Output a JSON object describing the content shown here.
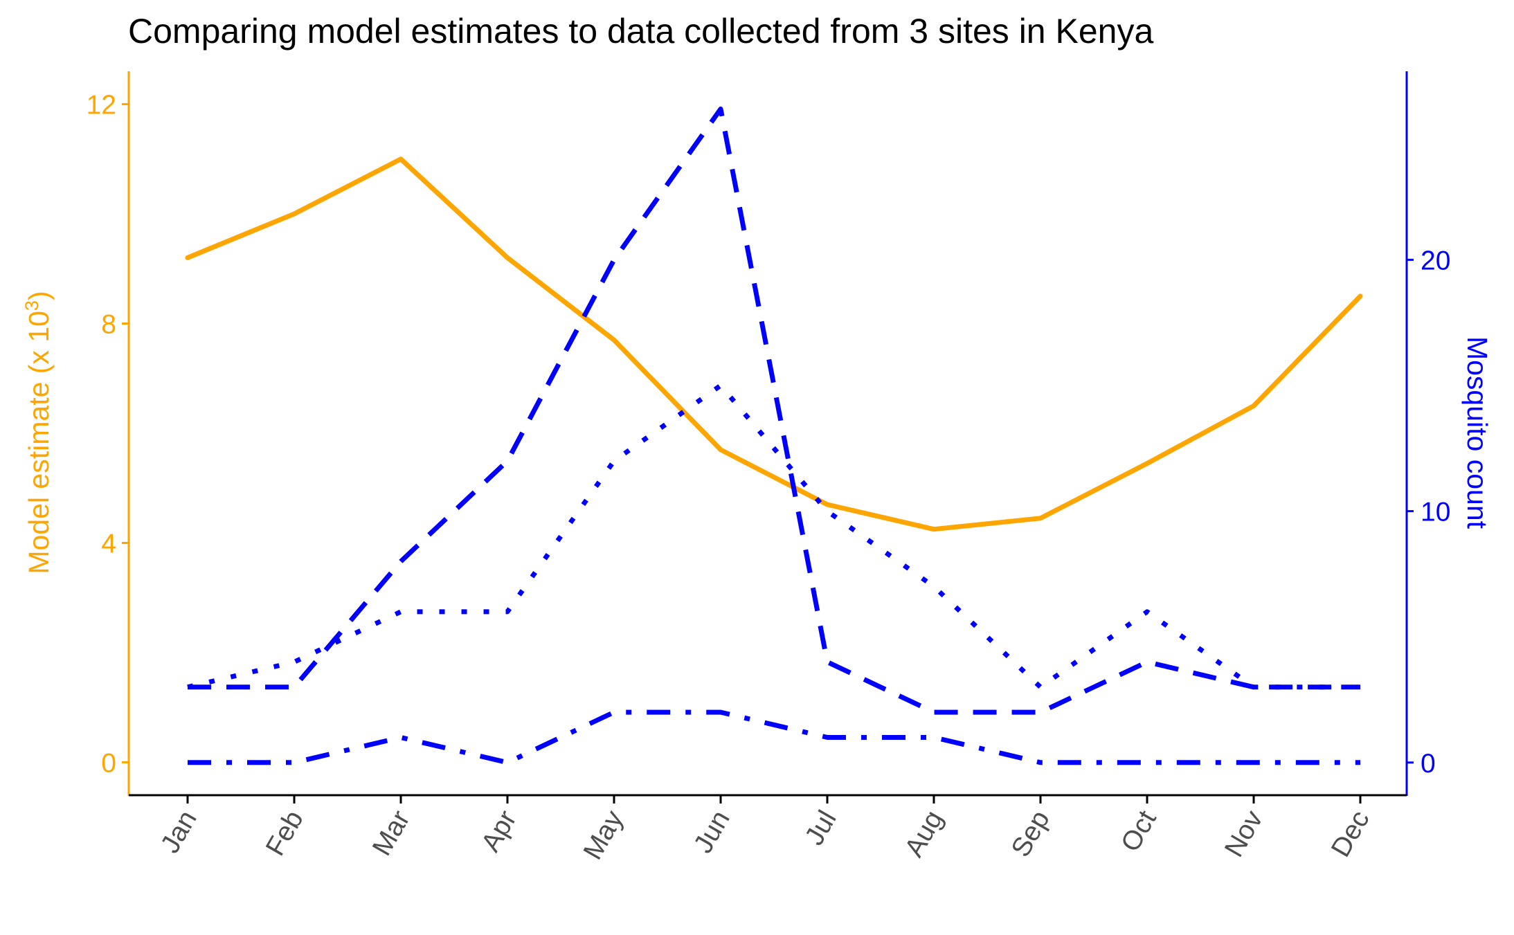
{
  "chart_data": {
    "type": "line",
    "title": "Comparing model estimates to data collected from 3 sites in Kenya",
    "categories": [
      "Jan",
      "Feb",
      "Mar",
      "Apr",
      "May",
      "Jun",
      "Jul",
      "Aug",
      "Sep",
      "Oct",
      "Nov",
      "Dec"
    ],
    "left_axis": {
      "label_main": "Model estimate (x 10",
      "label_sup": "3",
      "label_close": ")",
      "ylim": [
        -0.6,
        12.6
      ],
      "ticks": [
        0,
        4,
        8,
        12
      ],
      "tick_labels": [
        "0",
        "4",
        "8",
        "12"
      ],
      "color": "#FFA500"
    },
    "right_axis": {
      "label": "Mosquito count",
      "ylim": [
        -1.3,
        27.5
      ],
      "ticks": [
        0,
        10,
        20
      ],
      "tick_labels": [
        "0",
        "10",
        "20"
      ],
      "color": "#0000FF"
    },
    "series": [
      {
        "axis": "left",
        "color": "#FFA500",
        "style": "solid",
        "values": [
          9.2,
          10.0,
          11.0,
          9.2,
          7.7,
          5.7,
          4.7,
          4.25,
          4.45,
          5.45,
          6.5,
          8.5
        ]
      },
      {
        "axis": "right",
        "color": "#0000FF",
        "style": "dashed",
        "values": [
          3,
          3,
          8,
          12,
          20,
          26,
          4,
          2,
          2,
          4,
          3,
          3
        ]
      },
      {
        "axis": "right",
        "color": "#0000FF",
        "style": "dotted",
        "values": [
          3,
          4,
          6,
          6,
          12,
          15,
          10,
          7,
          3,
          6,
          3,
          3
        ]
      },
      {
        "axis": "right",
        "color": "#0000FF",
        "style": "dashdot",
        "values": [
          0,
          0,
          1,
          0,
          2,
          2,
          1,
          1,
          0,
          0,
          0,
          0
        ]
      }
    ],
    "grid": false,
    "legend": "none"
  }
}
